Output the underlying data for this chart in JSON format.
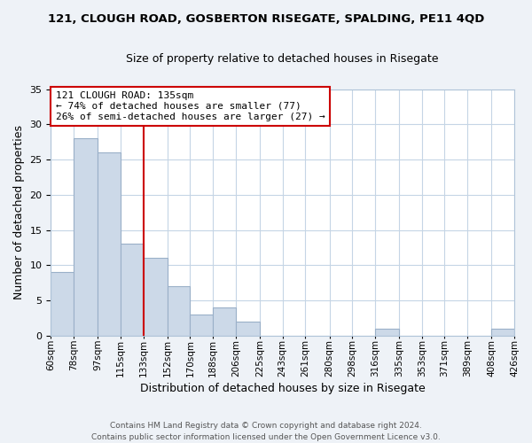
{
  "title1": "121, CLOUGH ROAD, GOSBERTON RISEGATE, SPALDING, PE11 4QD",
  "title2": "Size of property relative to detached houses in Risegate",
  "xlabel": "Distribution of detached houses by size in Risegate",
  "ylabel": "Number of detached properties",
  "bar_color": "#ccd9e8",
  "bar_edgecolor": "#9ab0c8",
  "grid_color": "#c5d5e5",
  "vline_color": "#cc0000",
  "vline_x": 133,
  "annotation_box_edgecolor": "#cc0000",
  "annotation_line1": "121 CLOUGH ROAD: 135sqm",
  "annotation_line2": "← 74% of detached houses are smaller (77)",
  "annotation_line3": "26% of semi-detached houses are larger (27) →",
  "bin_edges": [
    60,
    78,
    97,
    115,
    133,
    152,
    170,
    188,
    206,
    225,
    243,
    261,
    280,
    298,
    316,
    335,
    353,
    371,
    389,
    408,
    426
  ],
  "bin_counts": [
    9,
    28,
    26,
    13,
    11,
    7,
    3,
    4,
    2,
    0,
    0,
    0,
    0,
    0,
    1,
    0,
    0,
    0,
    0,
    1
  ],
  "ylim": [
    0,
    35
  ],
  "yticks": [
    0,
    5,
    10,
    15,
    20,
    25,
    30,
    35
  ],
  "tick_labels": [
    "60sqm",
    "78sqm",
    "97sqm",
    "115sqm",
    "133sqm",
    "152sqm",
    "170sqm",
    "188sqm",
    "206sqm",
    "225sqm",
    "243sqm",
    "261sqm",
    "280sqm",
    "298sqm",
    "316sqm",
    "335sqm",
    "353sqm",
    "371sqm",
    "389sqm",
    "408sqm",
    "426sqm"
  ],
  "footer1": "Contains HM Land Registry data © Crown copyright and database right 2024.",
  "footer2": "Contains public sector information licensed under the Open Government Licence v3.0.",
  "bg_color": "#eef2f7",
  "plot_bg_color": "#ffffff"
}
